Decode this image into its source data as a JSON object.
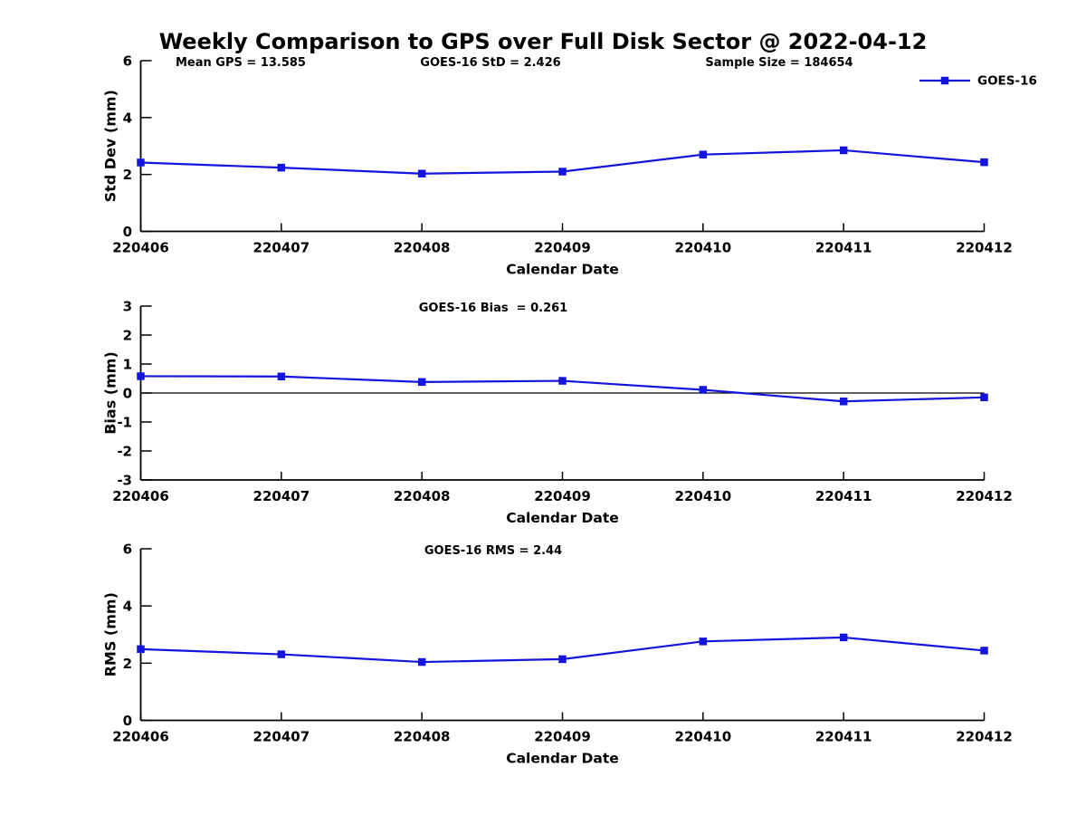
{
  "figure_title": "Weekly Comparison to GPS over Full Disk Sector @ 2022-04-12",
  "colors": {
    "series": "#1414DF",
    "axis": "#000000",
    "text": "#000000",
    "background": "#FFFFFF"
  },
  "legend": {
    "label": "GOES-16",
    "position": "top-right"
  },
  "chart_data": [
    {
      "type": "line",
      "series_name": "GOES-16",
      "categories": [
        "220406",
        "220407",
        "220408",
        "220409",
        "220410",
        "220411",
        "220412"
      ],
      "values": [
        2.42,
        2.24,
        2.03,
        2.1,
        2.7,
        2.85,
        2.43
      ],
      "xlabel": "Calendar Date",
      "ylabel": "Std Dev (mm)",
      "ylim": [
        0,
        6
      ],
      "yticks": [
        0,
        2,
        4,
        6
      ],
      "grid": false,
      "zero_line": false,
      "show_legend": true,
      "annotations": [
        "Mean GPS = 13.585",
        "GOES-16 StD = 2.426",
        "Sample Size = 184654"
      ]
    },
    {
      "type": "line",
      "series_name": "GOES-16",
      "categories": [
        "220406",
        "220407",
        "220408",
        "220409",
        "220410",
        "220411",
        "220412"
      ],
      "values": [
        0.58,
        0.57,
        0.38,
        0.42,
        0.11,
        -0.29,
        -0.15
      ],
      "xlabel": "Calendar Date",
      "ylabel": "Bias (mm)",
      "ylim": [
        -3,
        3
      ],
      "yticks": [
        -3,
        -2,
        -1,
        0,
        1,
        2,
        3
      ],
      "grid": false,
      "zero_line": true,
      "show_legend": false,
      "annotations": [
        "GOES-16 Bias  = 0.261"
      ]
    },
    {
      "type": "line",
      "series_name": "GOES-16",
      "categories": [
        "220406",
        "220407",
        "220408",
        "220409",
        "220410",
        "220411",
        "220412"
      ],
      "values": [
        2.49,
        2.31,
        2.04,
        2.14,
        2.76,
        2.9,
        2.44
      ],
      "xlabel": "Calendar Date",
      "ylabel": "RMS (mm)",
      "ylim": [
        0,
        6
      ],
      "yticks": [
        0,
        2,
        4,
        6
      ],
      "grid": false,
      "zero_line": false,
      "show_legend": false,
      "annotations": [
        "GOES-16 RMS = 2.44"
      ]
    }
  ]
}
